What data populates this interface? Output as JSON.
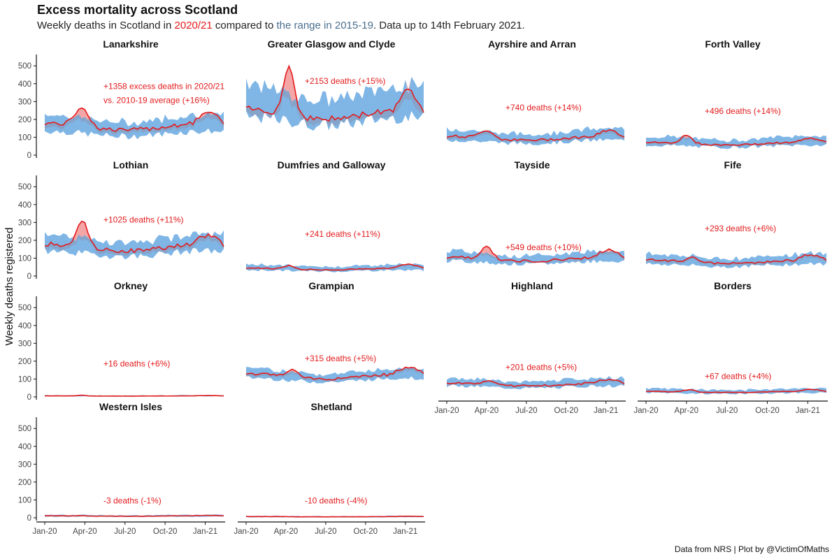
{
  "title": "Excess mortality across Scotland",
  "subtitle": {
    "prefix": "Weekly deaths in Scotland in ",
    "highlight_current": "2020/21",
    "middle": " compared to ",
    "highlight_range": "the range in 2015-19",
    "suffix": ". Data up to 14th February 2021."
  },
  "caption": "Data from NRS | Plot by @VictimOfMaths",
  "colors": {
    "current_line": "#e31a1c",
    "excess_fill": "#f4a6a6",
    "range_fill": "#7fb6e6",
    "range_overlap": "#8a98b8",
    "annotation_text": "#e31a1c",
    "range_text": "#4a6f8f"
  },
  "chart_data": {
    "type": "area",
    "ylabel": "Weekly deaths registered",
    "ylim": [
      0,
      540
    ],
    "y_ticks": [
      0,
      100,
      200,
      300,
      400,
      500
    ],
    "x_tick_labels": [
      "Jan-20",
      "Apr-20",
      "Jul-20",
      "Oct-20",
      "Jan-21"
    ],
    "x_tick_weeks": [
      0,
      13,
      26,
      39,
      52
    ],
    "weeks": 59,
    "series_legend": {
      "current": "2020/21",
      "range": "the range in 2015-19"
    },
    "panels": [
      {
        "name": "Lanarkshire",
        "annotation": "+1358 excess deaths in 2020/21",
        "annotation2": "vs. 2010-19 average (+16%)",
        "annotation_y": 370,
        "baseline": 160,
        "range_low": 120,
        "range_high": 195,
        "peak": 270,
        "peak_week": 12,
        "peak_width": 6,
        "late_bump": 60
      },
      {
        "name": "Greater Glasgow and Clyde",
        "annotation": "+2153 deaths (+15%)",
        "annotation_y": 400,
        "baseline": 230,
        "range_low": 190,
        "range_high": 330,
        "peak": 500,
        "peak_week": 14,
        "peak_width": 5,
        "late_bump": 100
      },
      {
        "name": "Ayrshire and Arran",
        "annotation": "+740 deaths (+14%)",
        "annotation_y": 250,
        "baseline": 95,
        "range_low": 75,
        "range_high": 125,
        "peak": 140,
        "peak_week": 13,
        "peak_width": 6,
        "late_bump": 30
      },
      {
        "name": "Forth Valley",
        "annotation": "+496 deaths (+14%)",
        "annotation_y": 230,
        "baseline": 65,
        "range_low": 50,
        "range_high": 90,
        "peak": 110,
        "peak_week": 13,
        "peak_width": 5,
        "late_bump": 20
      },
      {
        "name": "Lothian",
        "annotation": "+1025 deaths (+11%)",
        "annotation_y": 300,
        "baseline": 160,
        "range_low": 125,
        "range_high": 200,
        "peak": 310,
        "peak_week": 12,
        "peak_width": 5,
        "late_bump": 50
      },
      {
        "name": "Dumfries and Galloway",
        "annotation": "+241 deaths (+11%)",
        "annotation_y": 220,
        "baseline": 40,
        "range_low": 30,
        "range_high": 55,
        "peak": 60,
        "peak_week": 14,
        "peak_width": 4,
        "late_bump": 20
      },
      {
        "name": "Tayside",
        "annotation": "+549 deaths (+10%)",
        "annotation_y": 145,
        "baseline": 95,
        "range_low": 75,
        "range_high": 120,
        "peak": 170,
        "peak_week": 13,
        "peak_width": 5,
        "late_bump": 40
      },
      {
        "name": "Fife",
        "annotation": "+293 deaths (+6%)",
        "annotation_y": 250,
        "baseline": 80,
        "range_low": 60,
        "range_high": 105,
        "peak": 110,
        "peak_week": 15,
        "peak_width": 5,
        "late_bump": 30
      },
      {
        "name": "Orkney",
        "annotation": "+16 deaths (+6%)",
        "annotation_y": 170,
        "baseline": 5,
        "range_low": 3,
        "range_high": 8,
        "peak": 9,
        "peak_week": 12,
        "peak_width": 4,
        "late_bump": 2
      },
      {
        "name": "Grampian",
        "annotation": "+315 deaths (+5%)",
        "annotation_y": 200,
        "baseline": 115,
        "range_low": 95,
        "range_high": 140,
        "peak": 160,
        "peak_week": 15,
        "peak_width": 5,
        "late_bump": 40
      },
      {
        "name": "Highland",
        "annotation": "+201 deaths (+5%)",
        "annotation_y": 150,
        "baseline": 70,
        "range_low": 55,
        "range_high": 90,
        "peak": 95,
        "peak_week": 14,
        "peak_width": 5,
        "late_bump": 20
      },
      {
        "name": "Borders",
        "annotation": "+67 deaths (+4%)",
        "annotation_y": 100,
        "baseline": 28,
        "range_low": 20,
        "range_high": 40,
        "peak": 40,
        "peak_week": 14,
        "peak_width": 5,
        "late_bump": 10
      },
      {
        "name": "Western Isles",
        "annotation": "-3 deaths (-1%)",
        "annotation_y": 80,
        "baseline": 10,
        "range_low": 6,
        "range_high": 14,
        "peak": 12,
        "peak_week": 12,
        "peak_width": 4,
        "late_bump": 2
      },
      {
        "name": "Shetland",
        "annotation": "-10 deaths (-4%)",
        "annotation_y": 80,
        "baseline": 6,
        "range_low": 3,
        "range_high": 9,
        "peak": 7,
        "peak_week": 12,
        "peak_width": 4,
        "late_bump": 2
      }
    ]
  }
}
